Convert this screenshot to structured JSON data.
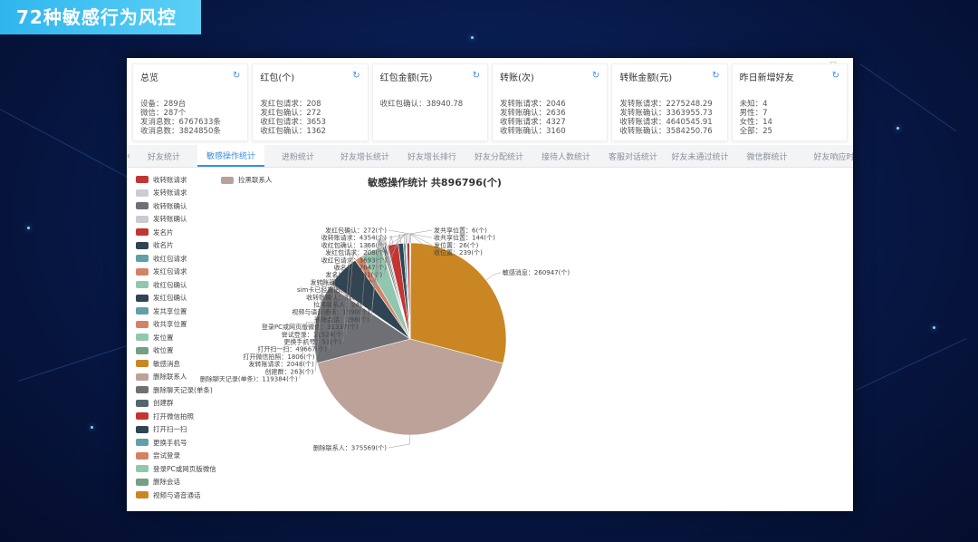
{
  "slide": {
    "title": "72种敏感行为风控"
  },
  "cards": [
    {
      "title": "总览",
      "lines": [
        "设备：289台",
        "微信：287个",
        "发消息数：6767633条",
        "收消息数：3824850条"
      ]
    },
    {
      "title": "红包(个)",
      "lines": [
        "发红包请求：208",
        "发红包确认：272",
        "收红包请求：3653",
        "收红包确认：1362"
      ]
    },
    {
      "title": "红包金额(元)",
      "lines": [
        "收红包确认：38940.78"
      ]
    },
    {
      "title": "转账(次)",
      "lines": [
        "发转账请求：2046",
        "发转账确认：2636",
        "收转账请求：4327",
        "收转账确认：3160"
      ]
    },
    {
      "title": "转账金额(元)",
      "lines": [
        "发转账请求：2275248.29",
        "发转账确认：3363955.73",
        "收转账请求：4640545.91",
        "收转账确认：3584250.76"
      ]
    },
    {
      "title": "昨日新增好友",
      "lines": [
        "未知：4",
        "男性：7",
        "女性：14",
        "全部：25"
      ]
    }
  ],
  "tabs": [
    "好友统计",
    "敏感操作统计",
    "进粉统计",
    "好友增长统计",
    "好友增长排行",
    "好友分配统计",
    "接待人数统计",
    "客服对话统计",
    "好友未通过统计",
    "微信群统计",
    "好友响应时"
  ],
  "active_tab": 1,
  "legend2": {
    "label": "拉黑联系人",
    "color": "#b9a09a"
  },
  "chart_data": {
    "type": "pie",
    "title": "敏感操作统计 共896796(个)",
    "legend_items": [
      {
        "name": "收转账请求",
        "color": "#c23531"
      },
      {
        "name": "发转账请求",
        "color": "#c9ccd1"
      },
      {
        "name": "收转账确认",
        "color": "#6e7074"
      },
      {
        "name": "发转账确认",
        "color": "#c8cbd0"
      },
      {
        "name": "发名片",
        "color": "#c23531"
      },
      {
        "name": "收名片",
        "color": "#2f4554"
      },
      {
        "name": "收红包请求",
        "color": "#61a0a8"
      },
      {
        "name": "发红包请求",
        "color": "#d48265"
      },
      {
        "name": "收红包确认",
        "color": "#91c7ae"
      },
      {
        "name": "发红包确认",
        "color": "#2f4554"
      },
      {
        "name": "发共享位置",
        "color": "#61a0a8"
      },
      {
        "name": "收共享位置",
        "color": "#d48265"
      },
      {
        "name": "发位置",
        "color": "#91c7ae"
      },
      {
        "name": "收位置",
        "color": "#749f83"
      },
      {
        "name": "敏感消息",
        "color": "#ca8622"
      },
      {
        "name": "删除联系人",
        "color": "#bda29a"
      },
      {
        "name": "删除聊天记录(单条)",
        "color": "#6e7074"
      },
      {
        "name": "创建群",
        "color": "#546570"
      },
      {
        "name": "打开微信拍照",
        "color": "#c23531"
      },
      {
        "name": "打开扫一扫",
        "color": "#2f4554"
      },
      {
        "name": "更换手机号",
        "color": "#61a0a8"
      },
      {
        "name": "尝试登录",
        "color": "#d48265"
      },
      {
        "name": "登录PC或网页版微信",
        "color": "#91c7ae"
      },
      {
        "name": "删除会话",
        "color": "#749f83"
      },
      {
        "name": "视频与语音通话",
        "color": "#ca8622"
      }
    ],
    "slices": [
      {
        "name": "敏感消息",
        "value": 260947,
        "label": "敏感消息：260947(个)",
        "color": "#ca8622"
      },
      {
        "name": "删除联系人",
        "value": 375569,
        "label": "删除联系人：375569(个)",
        "color": "#bda29a"
      },
      {
        "name": "删除聊天记录(单条)",
        "value": 119384,
        "label": "删除聊天记录(单条)：119384(个)",
        "color": "#6e7074"
      },
      {
        "name": "创建群",
        "value": 263,
        "label": "创建群：263(个)",
        "color": "#546570"
      },
      {
        "name": "发转账请求",
        "value": 2048,
        "label": "发转账请求：2048(个)",
        "color": "#c4ccd3"
      },
      {
        "name": "打开微信拍照",
        "value": 1806,
        "label": "打开微信拍照：1806(个)",
        "color": "#c23531"
      },
      {
        "name": "打开扫一扫",
        "value": 49667,
        "label": "打开扫一扫：49667(个)",
        "color": "#2f4554"
      },
      {
        "name": "更换手机号",
        "value": 51,
        "label": "更换手机号：51(个)",
        "color": "#61a0a8"
      },
      {
        "name": "尝试登录",
        "value": 11524,
        "label": "尝试登录：11524(个)",
        "color": "#d48265"
      },
      {
        "name": "登录PC或网页版微信",
        "value": 31337,
        "label": "登录PC或网页版微信：31337(个)",
        "color": "#91c7ae"
      },
      {
        "name": "删除会话",
        "value": 298,
        "label": "删除会话：298(个)",
        "color": "#749f83"
      },
      {
        "name": "视频与语音通话",
        "value": 1590,
        "label": "视频与语音通话：1590(个)",
        "color": "#ca8622"
      },
      {
        "name": "拉黑联系人",
        "value": 24,
        "label": "拉黑联系人：24(个)",
        "color": "#bda29a"
      },
      {
        "name": "收转账确认",
        "value": 3185,
        "label": "收转账确认：3185(个)",
        "color": "#6e7074"
      },
      {
        "name": "sim卡已经拔出",
        "value": 2665,
        "label": "sim卡已经拔出：2665(个)",
        "color": "#546570"
      },
      {
        "name": "发转账确认",
        "value": 2642,
        "label": "发转账确认：2642(个)",
        "color": "#c4ccd3"
      },
      {
        "name": "发名片",
        "value": 15841,
        "label": "发名片：15841(个)",
        "color": "#c23531"
      },
      {
        "name": "收名片",
        "value": 7647,
        "label": "收名片：7647(个)",
        "color": "#2f4554"
      },
      {
        "name": "收红包请求",
        "value": 3693,
        "label": "收红包请求：3693(个)",
        "color": "#61a0a8"
      },
      {
        "name": "发红包请求",
        "value": 208,
        "label": "发红包请求：208(个)",
        "color": "#d48265"
      },
      {
        "name": "收红包确认",
        "value": 1366,
        "label": "收红包确认：1366(个)",
        "color": "#91c7ae"
      },
      {
        "name": "收转账请求",
        "value": 4354,
        "label": "收转账请求：4354(个)",
        "color": "#c23531"
      },
      {
        "name": "发红包确认",
        "value": 272,
        "label": "发红包确认：272(个)",
        "color": "#2f4554"
      },
      {
        "name": "发共享位置",
        "value": 6,
        "label": "发共享位置：6(个)",
        "color": "#61a0a8"
      },
      {
        "name": "收共享位置",
        "value": 144,
        "label": "收共享位置：144(个)",
        "color": "#d48265"
      },
      {
        "name": "发位置",
        "value": 26,
        "label": "发位置：26(个)",
        "color": "#91c7ae"
      },
      {
        "name": "收位置",
        "value": 239,
        "label": "收位置：239(个)",
        "color": "#749f83"
      }
    ]
  }
}
